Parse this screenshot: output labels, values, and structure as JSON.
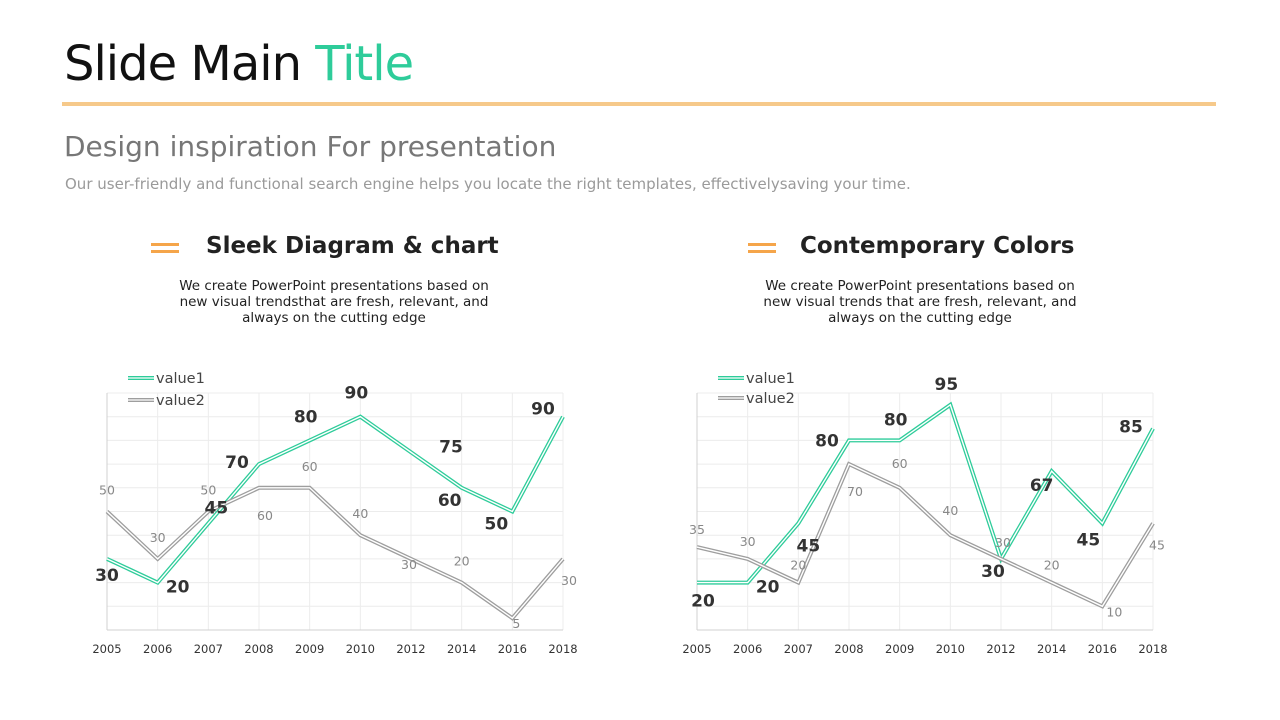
{
  "slide": {
    "title_main": "Slide Main",
    "title_accent": "Title",
    "subtitle": "Design inspiration For presentation",
    "description": "Our user-friendly and functional search engine helps you locate the right templates, effectivelysaving your time."
  },
  "sections": [
    {
      "title": "Sleek Diagram & chart",
      "text_lines": [
        "We create PowerPoint presentations based on",
        "new visual trendsthat are fresh, relevant, and",
        "always on the cutting edge"
      ]
    },
    {
      "title": "Contemporary Colors",
      "text_lines": [
        "We create PowerPoint presentations based on",
        "new visual trends that are fresh, relevant, and",
        "always on the cutting edge"
      ]
    }
  ],
  "colors": {
    "accent": "#2ecc9a",
    "rule": "#f6c98a",
    "icon": "#f5a54a",
    "series2": "#9e9e9e"
  },
  "chart_data": [
    {
      "type": "line",
      "categories": [
        "2005",
        "2006",
        "2007",
        "2008",
        "2009",
        "2010",
        "2012",
        "2014",
        "2016",
        "2018"
      ],
      "series": [
        {
          "name": "value1",
          "values": [
            30,
            20,
            45,
            70,
            80,
            90,
            75,
            60,
            50,
            90
          ]
        },
        {
          "name": "value2",
          "values": [
            50,
            30,
            50,
            60,
            60,
            40,
            30,
            20,
            5,
            30
          ]
        }
      ],
      "ylim": [
        0,
        100
      ],
      "grid": true,
      "legend": "top-left"
    },
    {
      "type": "line",
      "categories": [
        "2005",
        "2006",
        "2007",
        "2008",
        "2009",
        "2010",
        "2012",
        "2014",
        "2016",
        "2018"
      ],
      "series": [
        {
          "name": "value1",
          "values": [
            20,
            20,
            45,
            80,
            80,
            95,
            30,
            67,
            45,
            85
          ]
        },
        {
          "name": "value2",
          "values": [
            35,
            30,
            20,
            70,
            60,
            40,
            30,
            20,
            10,
            45
          ]
        }
      ],
      "ylim": [
        0,
        100
      ],
      "grid": true,
      "legend": "top-left"
    }
  ]
}
